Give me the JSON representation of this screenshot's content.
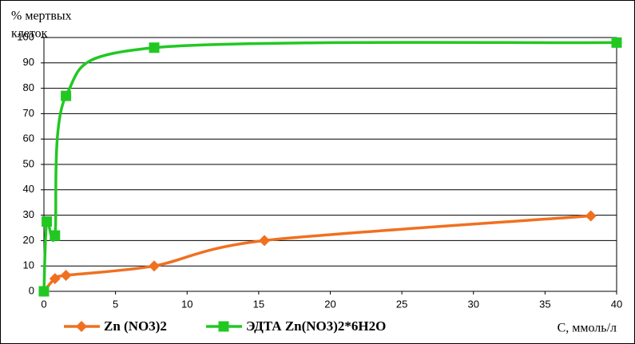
{
  "chart_data": {
    "type": "line",
    "y_label": [
      "% мертвых",
      "клеток"
    ],
    "x_label": "C, ммоль/л",
    "xlim": [
      0,
      40
    ],
    "xticks": [
      0,
      5,
      10,
      15,
      20,
      25,
      30,
      35,
      40
    ],
    "ylim": [
      0,
      100
    ],
    "yticks": [
      0,
      10,
      20,
      30,
      40,
      50,
      60,
      70,
      80,
      90,
      100
    ],
    "grid": true,
    "legend": "bottom-left",
    "series": [
      {
        "name": "Zn (NO3)2",
        "color": "#f07020",
        "marker": "diamond",
        "x": [
          0,
          0.77,
          1.54,
          7.7,
          15.4,
          38.2
        ],
        "values": [
          0,
          5,
          6.3,
          10,
          20,
          29.7
        ]
      },
      {
        "name": "ЭДТА Zn(NO3)2*6H2O",
        "color": "#22c822",
        "marker": "square",
        "x": [
          0,
          0.2,
          0.77,
          1.54,
          7.7,
          40
        ],
        "values": [
          0,
          27.5,
          22,
          77,
          96,
          98
        ]
      }
    ]
  }
}
